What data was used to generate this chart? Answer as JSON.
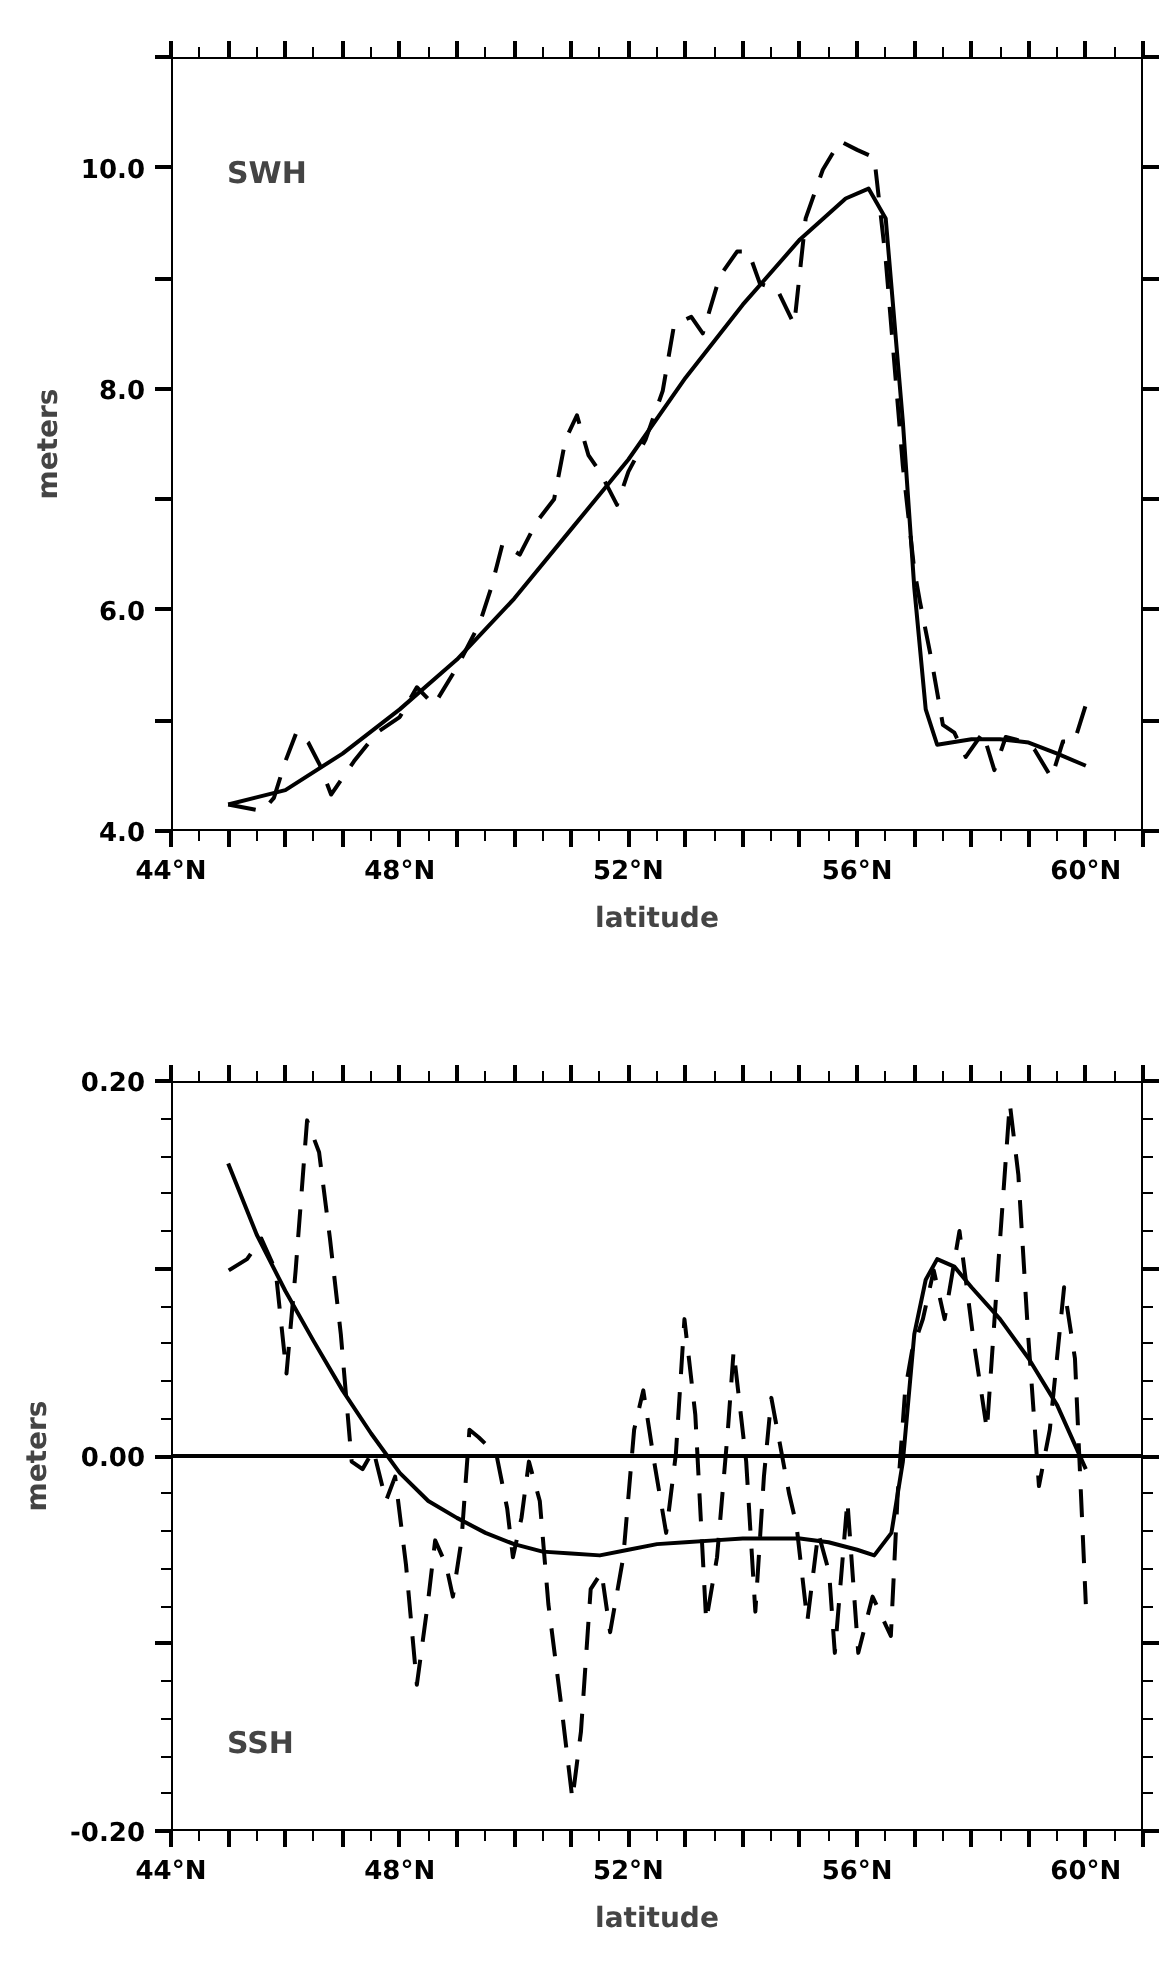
{
  "chart_data": [
    {
      "type": "line",
      "xlabel": "latitude",
      "ylabel": "meters",
      "annotations": [
        "SWH"
      ],
      "grid": false,
      "xlim": [
        44,
        61
      ],
      "ylim": [
        4,
        11
      ],
      "xticks": [
        {
          "value": 44,
          "label": "44°N"
        },
        {
          "value": 45,
          "label": null
        },
        {
          "value": 46,
          "label": null
        },
        {
          "value": 47,
          "label": null
        },
        {
          "value": 48,
          "label": "48°N"
        },
        {
          "value": 49,
          "label": null
        },
        {
          "value": 50,
          "label": null
        },
        {
          "value": 51,
          "label": null
        },
        {
          "value": 52,
          "label": "52°N"
        },
        {
          "value": 53,
          "label": null
        },
        {
          "value": 54,
          "label": null
        },
        {
          "value": 55,
          "label": null
        },
        {
          "value": 56,
          "label": "56°N"
        },
        {
          "value": 57,
          "label": null
        },
        {
          "value": 58,
          "label": null
        },
        {
          "value": 59,
          "label": null
        },
        {
          "value": 60,
          "label": "60°N"
        },
        {
          "value": 61,
          "label": null
        }
      ],
      "yticks": [
        {
          "value": 4,
          "label": "4.0"
        },
        {
          "value": 5,
          "label": null
        },
        {
          "value": 6,
          "label": "6.0"
        },
        {
          "value": 7,
          "label": null
        },
        {
          "value": 8,
          "label": "8.0"
        },
        {
          "value": 9,
          "label": null
        },
        {
          "value": 10,
          "label": "10.0"
        },
        {
          "value": 11,
          "label": null
        }
      ],
      "series": [
        {
          "color": "#000000",
          "line_style": "dashed",
          "x": [
            45.0,
            45.6,
            45.8,
            46.0,
            46.2,
            46.4,
            46.6,
            46.8,
            47.2,
            47.6,
            48.0,
            48.3,
            48.6,
            49.0,
            49.4,
            49.6,
            49.8,
            50.1,
            50.4,
            50.7,
            50.9,
            51.1,
            51.3,
            51.5,
            51.8,
            52.0,
            52.3,
            52.6,
            52.8,
            53.1,
            53.3,
            53.6,
            53.9,
            54.1,
            54.3,
            54.6,
            54.9,
            55.1,
            55.4,
            55.7,
            56.0,
            56.3,
            56.5,
            56.8,
            57.0,
            57.1,
            57.3,
            57.5,
            57.7,
            57.9,
            58.2,
            58.4,
            58.6,
            58.9,
            59.1,
            59.4,
            59.6,
            59.8,
            60.0
          ],
          "values": [
            4.24,
            4.18,
            4.3,
            4.63,
            4.9,
            4.8,
            4.6,
            4.33,
            4.63,
            4.89,
            5.03,
            5.3,
            5.14,
            5.48,
            5.88,
            6.2,
            6.6,
            6.5,
            6.8,
            7.0,
            7.54,
            7.76,
            7.4,
            7.25,
            6.95,
            7.25,
            7.54,
            7.98,
            8.58,
            8.65,
            8.5,
            9.02,
            9.24,
            9.24,
            8.95,
            8.9,
            8.58,
            9.54,
            9.98,
            10.24,
            10.16,
            10.09,
            9.17,
            7.3,
            6.36,
            6.07,
            5.55,
            4.96,
            4.89,
            4.67,
            4.89,
            4.55,
            4.85,
            4.81,
            4.74,
            4.48,
            4.81,
            4.81,
            5.14
          ]
        },
        {
          "color": "#000000",
          "line_style": "solid",
          "x": [
            45.0,
            46,
            47,
            48,
            49,
            50,
            51,
            52,
            53,
            54,
            55,
            55.8,
            56.2,
            56.5,
            56.8,
            57.0,
            57.2,
            57.4,
            58,
            58.5,
            59,
            59.5,
            60
          ],
          "values": [
            4.24,
            4.37,
            4.7,
            5.1,
            5.55,
            6.1,
            6.73,
            7.36,
            8.1,
            8.76,
            9.35,
            9.72,
            9.81,
            9.54,
            7.7,
            6.2,
            5.1,
            4.78,
            4.83,
            4.83,
            4.8,
            4.7,
            4.59
          ]
        }
      ]
    },
    {
      "type": "line",
      "xlabel": "latitude",
      "ylabel": "meters",
      "annotations": [
        "SSH"
      ],
      "grid": false,
      "xlim": [
        44,
        61
      ],
      "ylim": [
        -0.2,
        0.2
      ],
      "xticks": [
        {
          "value": 44,
          "label": "44°N"
        },
        {
          "value": 45,
          "label": null
        },
        {
          "value": 46,
          "label": null
        },
        {
          "value": 47,
          "label": null
        },
        {
          "value": 48,
          "label": "48°N"
        },
        {
          "value": 49,
          "label": null
        },
        {
          "value": 50,
          "label": null
        },
        {
          "value": 51,
          "label": null
        },
        {
          "value": 52,
          "label": "52°N"
        },
        {
          "value": 53,
          "label": null
        },
        {
          "value": 54,
          "label": null
        },
        {
          "value": 55,
          "label": null
        },
        {
          "value": 56,
          "label": "56°N"
        },
        {
          "value": 57,
          "label": null
        },
        {
          "value": 58,
          "label": null
        },
        {
          "value": 59,
          "label": null
        },
        {
          "value": 60,
          "label": "60°N"
        },
        {
          "value": 61,
          "label": null
        }
      ],
      "yticks": [
        {
          "value": -0.2,
          "label": "-0.20"
        },
        {
          "value": -0.1,
          "label": null
        },
        {
          "value": 0,
          "label": "0.00"
        },
        {
          "value": 0.1,
          "label": null
        },
        {
          "value": 0.2,
          "label": "0.20"
        }
      ],
      "ref_lines": [
        {
          "axis": "y",
          "value": 0,
          "label": null,
          "color": "#000000",
          "line_style": "solid"
        }
      ],
      "series": [
        {
          "color": "#000000",
          "line_style": "dashed",
          "x": [
            45.01,
            45.33,
            45.58,
            45.83,
            46.02,
            46.18,
            46.38,
            46.59,
            46.78,
            46.97,
            47.16,
            47.35,
            47.54,
            47.76,
            47.92,
            48.11,
            48.3,
            48.49,
            48.62,
            48.81,
            48.93,
            49.08,
            49.22,
            49.38,
            49.69,
            49.88,
            49.98,
            50.13,
            50.26,
            50.45,
            50.6,
            50.83,
            51.02,
            51.17,
            51.34,
            51.53,
            51.68,
            51.91,
            52.1,
            52.26,
            52.45,
            52.66,
            52.83,
            52.98,
            53.17,
            53.36,
            53.55,
            53.74,
            53.84,
            54.06,
            54.22,
            54.37,
            54.5,
            54.81,
            54.94,
            55.13,
            55.32,
            55.51,
            55.61,
            55.83,
            56.02,
            56.27,
            56.59,
            56.71,
            56.84,
            56.96,
            57.15,
            57.34,
            57.53,
            57.79,
            58.04,
            58.27,
            58.48,
            58.67,
            58.82,
            58.99,
            59.18,
            59.37,
            59.62,
            59.81,
            60.0
          ],
          "values": [
            0.099,
            0.105,
            0.116,
            0.099,
            0.044,
            0.099,
            0.179,
            0.162,
            0.116,
            0.065,
            -0.003,
            -0.007,
            0.003,
            -0.024,
            -0.011,
            -0.058,
            -0.122,
            -0.079,
            -0.045,
            -0.058,
            -0.075,
            -0.045,
            0.014,
            0.01,
            0.001,
            -0.028,
            -0.054,
            -0.033,
            -0.003,
            -0.024,
            -0.079,
            -0.134,
            -0.183,
            -0.147,
            -0.071,
            -0.062,
            -0.094,
            -0.054,
            0.014,
            0.035,
            -0.003,
            -0.041,
            0.001,
            0.073,
            0.022,
            -0.088,
            -0.054,
            0.014,
            0.056,
            -0.003,
            -0.083,
            -0.011,
            0.031,
            -0.02,
            -0.037,
            -0.088,
            -0.041,
            -0.062,
            -0.105,
            -0.024,
            -0.105,
            -0.075,
            -0.096,
            -0.02,
            0.035,
            0.056,
            0.073,
            0.099,
            0.073,
            0.12,
            0.061,
            0.014,
            0.107,
            0.188,
            0.15,
            0.065,
            -0.016,
            0.014,
            0.09,
            0.052,
            -0.079
          ]
        },
        {
          "color": "#000000",
          "line_style": "solid",
          "x": [
            45.0,
            45.5,
            46,
            46.5,
            47,
            47.5,
            48,
            48.5,
            49,
            49.5,
            50,
            50.5,
            51,
            51.5,
            52,
            52.5,
            53,
            53.5,
            54,
            54.5,
            55,
            55.5,
            56,
            56.3,
            56.6,
            56.8,
            57.0,
            57.2,
            57.4,
            57.7,
            58,
            58.5,
            59,
            59.5,
            60
          ],
          "values": [
            0.156,
            0.118,
            0.088,
            0.061,
            0.035,
            0.012,
            -0.009,
            -0.024,
            -0.033,
            -0.041,
            -0.047,
            -0.051,
            -0.052,
            -0.053,
            -0.05,
            -0.047,
            -0.046,
            -0.045,
            -0.044,
            -0.044,
            -0.044,
            -0.046,
            -0.05,
            -0.053,
            -0.041,
            -0.003,
            0.065,
            0.094,
            0.105,
            0.101,
            0.09,
            0.073,
            0.052,
            0.027,
            -0.007
          ]
        }
      ]
    }
  ]
}
